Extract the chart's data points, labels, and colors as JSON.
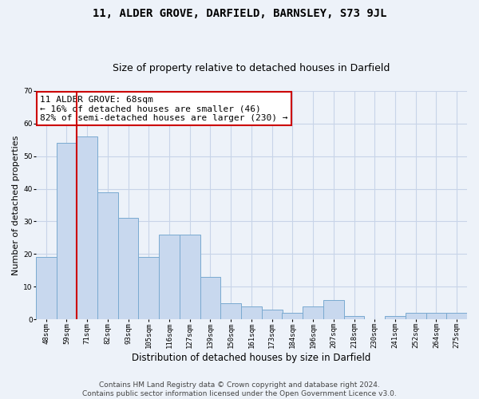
{
  "title": "11, ALDER GROVE, DARFIELD, BARNSLEY, S73 9JL",
  "subtitle": "Size of property relative to detached houses in Darfield",
  "xlabel": "Distribution of detached houses by size in Darfield",
  "ylabel": "Number of detached properties",
  "categories": [
    "48sqm",
    "59sqm",
    "71sqm",
    "82sqm",
    "93sqm",
    "105sqm",
    "116sqm",
    "127sqm",
    "139sqm",
    "150sqm",
    "161sqm",
    "173sqm",
    "184sqm",
    "196sqm",
    "207sqm",
    "218sqm",
    "230sqm",
    "241sqm",
    "252sqm",
    "264sqm",
    "275sqm"
  ],
  "values": [
    19,
    54,
    56,
    39,
    31,
    19,
    26,
    26,
    13,
    5,
    4,
    3,
    2,
    4,
    6,
    1,
    0,
    1,
    2,
    2,
    2
  ],
  "bar_color": "#c8d8ee",
  "bar_edge_color": "#7aaad0",
  "bar_edge_width": 0.7,
  "grid_color": "#c8d4e8",
  "bg_color": "#edf2f9",
  "vline_x": 1.5,
  "vline_color": "#cc0000",
  "annotation_text": "11 ALDER GROVE: 68sqm\n← 16% of detached houses are smaller (46)\n82% of semi-detached houses are larger (230) →",
  "annotation_box_color": "#ffffff",
  "annotation_box_edge": "#cc0000",
  "ylim": [
    0,
    70
  ],
  "yticks": [
    0,
    10,
    20,
    30,
    40,
    50,
    60,
    70
  ],
  "footer_line1": "Contains HM Land Registry data © Crown copyright and database right 2024.",
  "footer_line2": "Contains public sector information licensed under the Open Government Licence v3.0.",
  "title_fontsize": 10,
  "subtitle_fontsize": 9,
  "xlabel_fontsize": 8.5,
  "ylabel_fontsize": 8,
  "tick_fontsize": 6.5,
  "footer_fontsize": 6.5,
  "annotation_fontsize": 8
}
